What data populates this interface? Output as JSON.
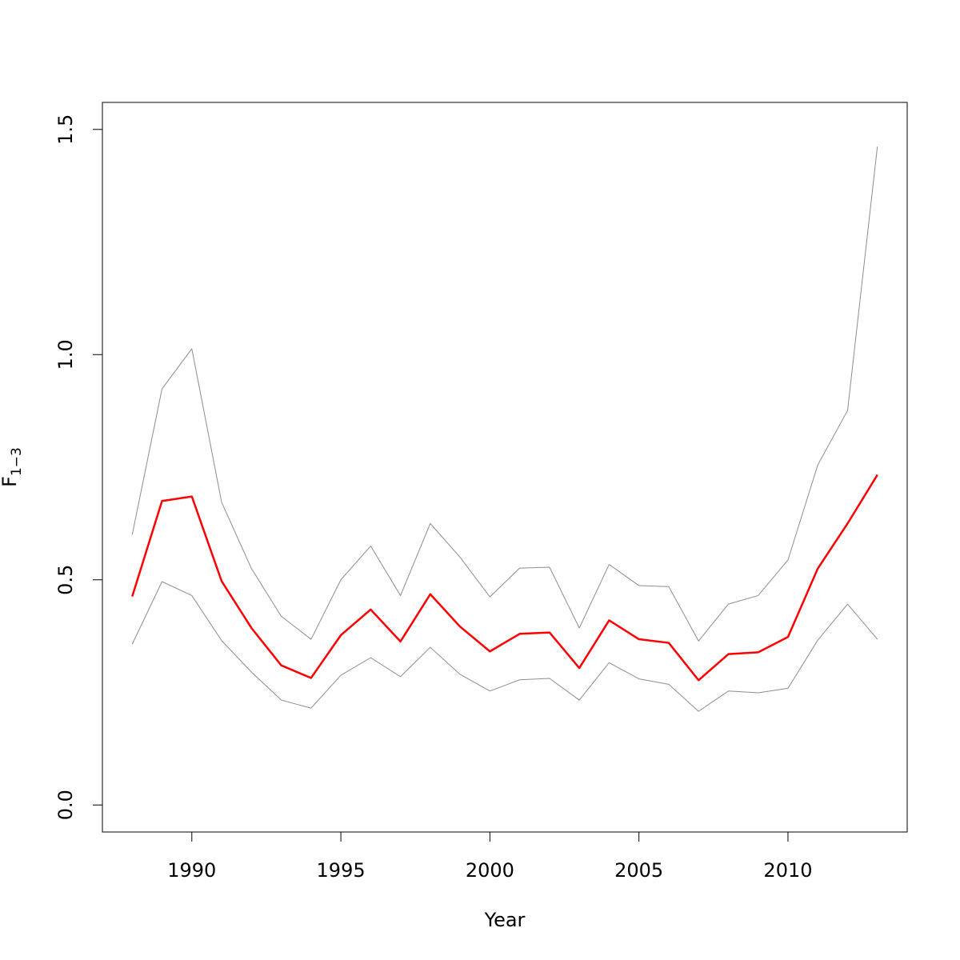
{
  "chart_data": {
    "type": "line",
    "title": "",
    "xlabel": "Year",
    "ylabel": "F",
    "ylabel_subscript": "1−3",
    "xlim": [
      1987.0,
      2014.0
    ],
    "ylim": [
      -0.06,
      1.56
    ],
    "x_ticks": [
      1990,
      1995,
      2000,
      2005,
      2010
    ],
    "y_ticks": [
      0.0,
      0.5,
      1.0,
      1.5
    ],
    "x_tick_labels": [
      "1990",
      "1995",
      "2000",
      "2005",
      "2010"
    ],
    "y_tick_labels": [
      "0.0",
      "0.5",
      "1.0",
      "1.5"
    ],
    "grid": false,
    "legend": "none",
    "x": [
      1988,
      1989,
      1990,
      1991,
      1992,
      1993,
      1994,
      1995,
      1996,
      1997,
      1998,
      1999,
      2000,
      2001,
      2002,
      2003,
      2004,
      2005,
      2006,
      2007,
      2008,
      2009,
      2010,
      2011,
      2012,
      2013
    ],
    "series": [
      {
        "color": "#ff0000",
        "width": 2.5,
        "values": [
          0.463,
          0.675,
          0.685,
          0.497,
          0.393,
          0.31,
          0.282,
          0.377,
          0.434,
          0.363,
          0.468,
          0.396,
          0.341,
          0.38,
          0.383,
          0.304,
          0.41,
          0.368,
          0.36,
          0.277,
          0.335,
          0.339,
          0.373,
          0.525,
          0.625,
          0.733
        ]
      },
      {
        "color": "#8c8c8c",
        "width": 1,
        "values": [
          0.6,
          0.924,
          1.013,
          0.672,
          0.525,
          0.419,
          0.368,
          0.5,
          0.575,
          0.465,
          0.625,
          0.55,
          0.462,
          0.526,
          0.528,
          0.393,
          0.534,
          0.487,
          0.485,
          0.364,
          0.446,
          0.465,
          0.544,
          0.755,
          0.876,
          1.462
        ]
      },
      {
        "color": "#8c8c8c",
        "width": 1,
        "values": [
          0.357,
          0.496,
          0.465,
          0.365,
          0.295,
          0.233,
          0.215,
          0.288,
          0.327,
          0.285,
          0.35,
          0.29,
          0.253,
          0.278,
          0.281,
          0.233,
          0.316,
          0.28,
          0.268,
          0.208,
          0.253,
          0.249,
          0.259,
          0.366,
          0.446,
          0.368
        ]
      }
    ]
  }
}
